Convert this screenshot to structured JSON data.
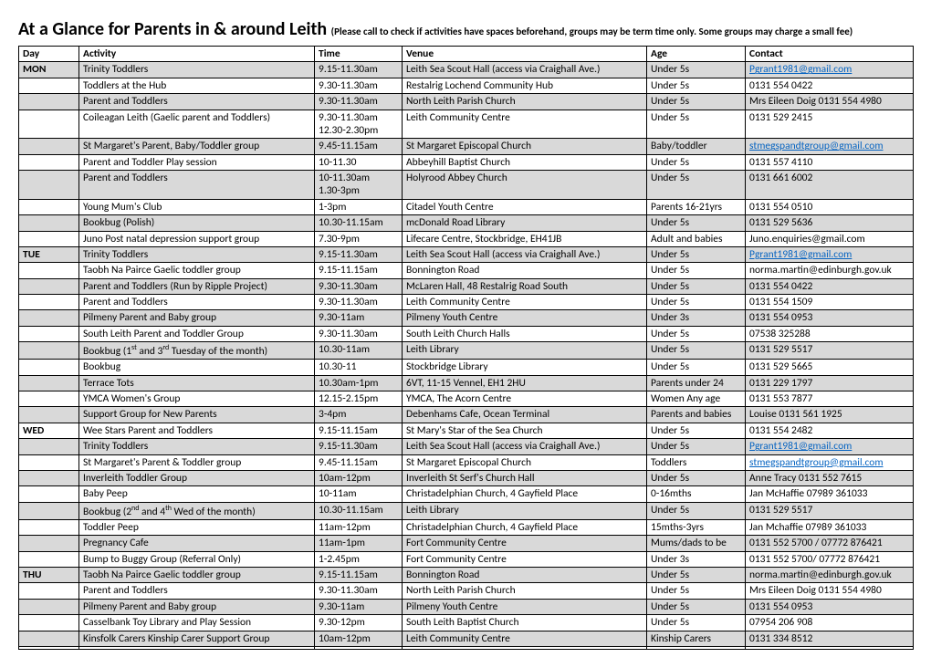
{
  "title_main": "At a Glance for Parents in & around Leith",
  "title_sub": "(Please call to check if activities have spaces beforehand, groups may be term time only. Some groups may charge a small fee)",
  "columns": [
    "Day",
    "Activity",
    "Time",
    "Venue",
    "Age",
    "Contact"
  ],
  "rows": [
    {
      "shaded": true,
      "day": "MON",
      "activity": "Trinity Toddlers",
      "time": "9.15-11.30am",
      "venue": "Leith Sea Scout Hall (access via Craighall Ave.)",
      "age": "Under 5s",
      "contact": "Pgrant1981@gmail.com",
      "contact_link": true
    },
    {
      "shaded": false,
      "day": "",
      "activity": "Toddlers at the Hub",
      "time": "9.30-11.30am",
      "venue": "Restalrig Lochend Community Hub",
      "age": "Under 5s",
      "contact": "0131 554 0422"
    },
    {
      "shaded": true,
      "day": "",
      "activity": "Parent and Toddlers",
      "time": "9.30-11.30am",
      "venue": "North Leith Parish Church",
      "age": "Under 5s",
      "contact": "Mrs  Eileen Doig 0131 554 4980"
    },
    {
      "shaded": false,
      "day": "",
      "activity": "Coileagan Leith (Gaelic parent and Toddlers)",
      "time": "9.30-11.30am\n12.30-2.30pm",
      "venue": "Leith Community Centre",
      "age": "Under 5s",
      "contact": "0131 529 2415"
    },
    {
      "shaded": true,
      "day": "",
      "activity": "St Margaret's Parent, Baby/Toddler group",
      "time": "9.45-11.15am",
      "venue": "St Margaret Episcopal Church",
      "age": "Baby/toddler",
      "contact": "stmegspandtgroup@gmail.com",
      "contact_link": true
    },
    {
      "shaded": false,
      "day": "",
      "activity": "Parent and Toddler Play session",
      "time": "10-11.30",
      "venue": "Abbeyhill Baptist Church",
      "age": "Under 5s",
      "contact": "0131 557 4110"
    },
    {
      "shaded": true,
      "day": "",
      "activity": "Parent and Toddlers",
      "time": "10-11.30am\n1.30-3pm",
      "venue": "Holyrood Abbey Church",
      "age": "Under 5s",
      "contact": "0131 661 6002"
    },
    {
      "shaded": false,
      "day": "",
      "activity": "Young Mum's Club",
      "time": "1-3pm",
      "venue": "Citadel Youth Centre",
      "age": "Parents 16-21yrs",
      "contact": "0131 554 0510"
    },
    {
      "shaded": true,
      "day": "",
      "activity": "Bookbug (Polish)",
      "time": "10.30-11.15am",
      "venue": "mcDonald Road Library",
      "age": "Under 5s",
      "contact": "0131 529 5636"
    },
    {
      "shaded": false,
      "day": "",
      "activity": "Juno Post natal depression support group",
      "time": "7.30-9pm",
      "venue": "Lifecare Centre, Stockbridge, EH41JB",
      "age": "Adult and babies",
      "contact": "Juno.enquiries@gmail.com"
    },
    {
      "shaded": true,
      "day": "TUE",
      "activity": "Trinity Toddlers",
      "time": "9.15-11.30am",
      "venue": "Leith Sea Scout Hall (access via Craighall Ave.)",
      "age": "Under 5s",
      "contact": "Pgrant1981@gmail.com",
      "contact_link": true
    },
    {
      "shaded": false,
      "day": "",
      "activity": "Taobh Na Pairce Gaelic toddler group",
      "time": "9.15-11.15am",
      "venue": "Bonnington Road",
      "age": "Under 5s",
      "contact": "norma.martin@edinburgh.gov.uk"
    },
    {
      "shaded": true,
      "day": "",
      "activity": "Parent and Toddlers (Run by Ripple Project)",
      "time": "9.30-11.30am",
      "venue": "McLaren Hall, 48 Restalrig Road South",
      "age": "Under 5s",
      "contact": "0131 554 0422"
    },
    {
      "shaded": false,
      "day": "",
      "activity": "Parent and Toddlers",
      "time": "9.30-11.30am",
      "venue": "Leith Community Centre",
      "age": "Under 5s",
      "contact": "0131 554 1509"
    },
    {
      "shaded": true,
      "day": "",
      "activity": "Pilmeny Parent and Baby group",
      "time": "9.30-11am",
      "venue": "Pilmeny Youth Centre",
      "age": "Under 3s",
      "contact": "0131 554 0953"
    },
    {
      "shaded": false,
      "day": "",
      "activity": "South Leith Parent and Toddler Group",
      "time": "9.30-11.30am",
      "venue": "South Leith Church Halls",
      "age": "Under 5s",
      "contact": "07538 325288"
    },
    {
      "shaded": true,
      "day": "",
      "activity_html": "Bookbug (1<sup>st</sup> and 3<sup>rd</sup> Tuesday of the month)",
      "time": "10.30-11am",
      "venue": "Leith Library",
      "age": "Under 5s",
      "contact": "0131 529 5517"
    },
    {
      "shaded": false,
      "day": "",
      "activity": "Bookbug",
      "time": "10.30-11",
      "venue": "Stockbridge Library",
      "age": "Under 5s",
      "contact": "0131 529 5665"
    },
    {
      "shaded": true,
      "day": "",
      "activity": "Terrace Tots",
      "time": "10.30am-1pm",
      "venue": "6VT, 11-15 Vennel, EH1 2HU",
      "age": "Parents under 24",
      "contact": "0131 229 1797"
    },
    {
      "shaded": false,
      "day": "",
      "activity": "YMCA Women's Group",
      "time": "12.15-2.15pm",
      "venue": "YMCA, The Acorn Centre",
      "age": "Women Any age",
      "contact": "0131 553 7877"
    },
    {
      "shaded": true,
      "day": "",
      "activity": "Support Group for New Parents",
      "time": "3-4pm",
      "venue": "Debenhams Cafe, Ocean Terminal",
      "age": "Parents and babies",
      "contact": "Louise 0131 561 1925"
    },
    {
      "shaded": false,
      "day": "WED",
      "activity": "Wee Stars Parent and Toddlers",
      "time": "9.15-11.15am",
      "venue": "St Mary's Star of the Sea Church",
      "age": "Under 5s",
      "contact": "0131 554 2482"
    },
    {
      "shaded": true,
      "day": "",
      "activity": "Trinity Toddlers",
      "time": "9.15-11.30am",
      "venue": "Leith Sea Scout Hall (access via Craighall Ave.)",
      "age": "Under 5s",
      "contact": "Pgrant1981@gmail.com",
      "contact_link": true
    },
    {
      "shaded": false,
      "day": "",
      "activity": "St Margaret's Parent & Toddler group",
      "time": "9.45-11.15am",
      "venue": "St Margaret Episcopal Church",
      "age": "Toddlers",
      "contact": "stmegspandtgroup@gmail.com",
      "contact_link": true
    },
    {
      "shaded": true,
      "day": "",
      "activity": "Inverleith Toddler Group",
      "time": "10am-12pm",
      "venue": "Inverleith St Serf's Church Hall",
      "age": "Under 5s",
      "contact": "Anne Tracy 0131 552 7615"
    },
    {
      "shaded": false,
      "day": "",
      "activity": "Baby Peep",
      "time": "10-11am",
      "venue": "Christadelphian Church, 4 Gayfield Place",
      "age": "0-16mths",
      "contact": "Jan McHaffie 07989 361033"
    },
    {
      "shaded": true,
      "day": "",
      "activity_html": "Bookbug (2<sup>nd</sup> and 4<sup>th</sup> Wed of the month)",
      "time": "10.30-11.15am",
      "venue": "Leith Library",
      "age": "Under 5s",
      "contact": "0131 529 5517"
    },
    {
      "shaded": false,
      "day": "",
      "activity": "Toddler Peep",
      "time": "11am-12pm",
      "venue": "Christadelphian Church, 4 Gayfield Place",
      "age": "15mths-3yrs",
      "contact": "Jan Mchaffie 07989 361033"
    },
    {
      "shaded": true,
      "day": "",
      "activity": "Pregnancy Cafe",
      "time": "11am-1pm",
      "venue": "Fort Community Centre",
      "age": "Mums/dads to be",
      "contact": "0131 552 5700 / 07772 876421"
    },
    {
      "shaded": false,
      "day": "",
      "activity": "Bump to Buggy Group (Referral Only)",
      "time": "1-2.45pm",
      "venue": "Fort Community Centre",
      "age": "Under 3s",
      "contact": "0131 552 5700/ 07772 876421"
    },
    {
      "shaded": true,
      "day": "THU",
      "activity": "Taobh Na Pairce Gaelic toddler group",
      "time": "9.15-11.15am",
      "venue": "Bonnington Road",
      "age": "Under 5s",
      "contact": "norma.martin@edinburgh.gov.uk"
    },
    {
      "shaded": false,
      "day": "",
      "activity": "Parent and Toddlers",
      "time": "9.30-11.30am",
      "venue": "North Leith Parish Church",
      "age": "Under 5s",
      "contact": "Mrs  Eileen Doig 0131 554 4980"
    },
    {
      "shaded": true,
      "day": "",
      "activity": "Pilmeny Parent and Baby group",
      "time": "9.30-11am",
      "venue": "Pilmeny Youth Centre",
      "age": "Under 5s",
      "contact": "0131 554 0953"
    },
    {
      "shaded": false,
      "day": "",
      "activity": "Casselbank Toy Library and Play Session",
      "time": "9.30-12pm",
      "venue": "South Leith Baptist Church",
      "age": "Under 5s",
      "contact": "07954 206 908"
    },
    {
      "shaded": true,
      "day": "",
      "activity": "Kinsfolk Carers Kinship Carer Support Group",
      "time": "10am-12pm",
      "venue": "Leith Community Centre",
      "age": "Kinship Carers",
      "contact": "0131 334 8512"
    },
    {
      "shaded": false,
      "day": "",
      "activity": "",
      "time": "",
      "venue": "",
      "age": "",
      "contact": ""
    }
  ]
}
